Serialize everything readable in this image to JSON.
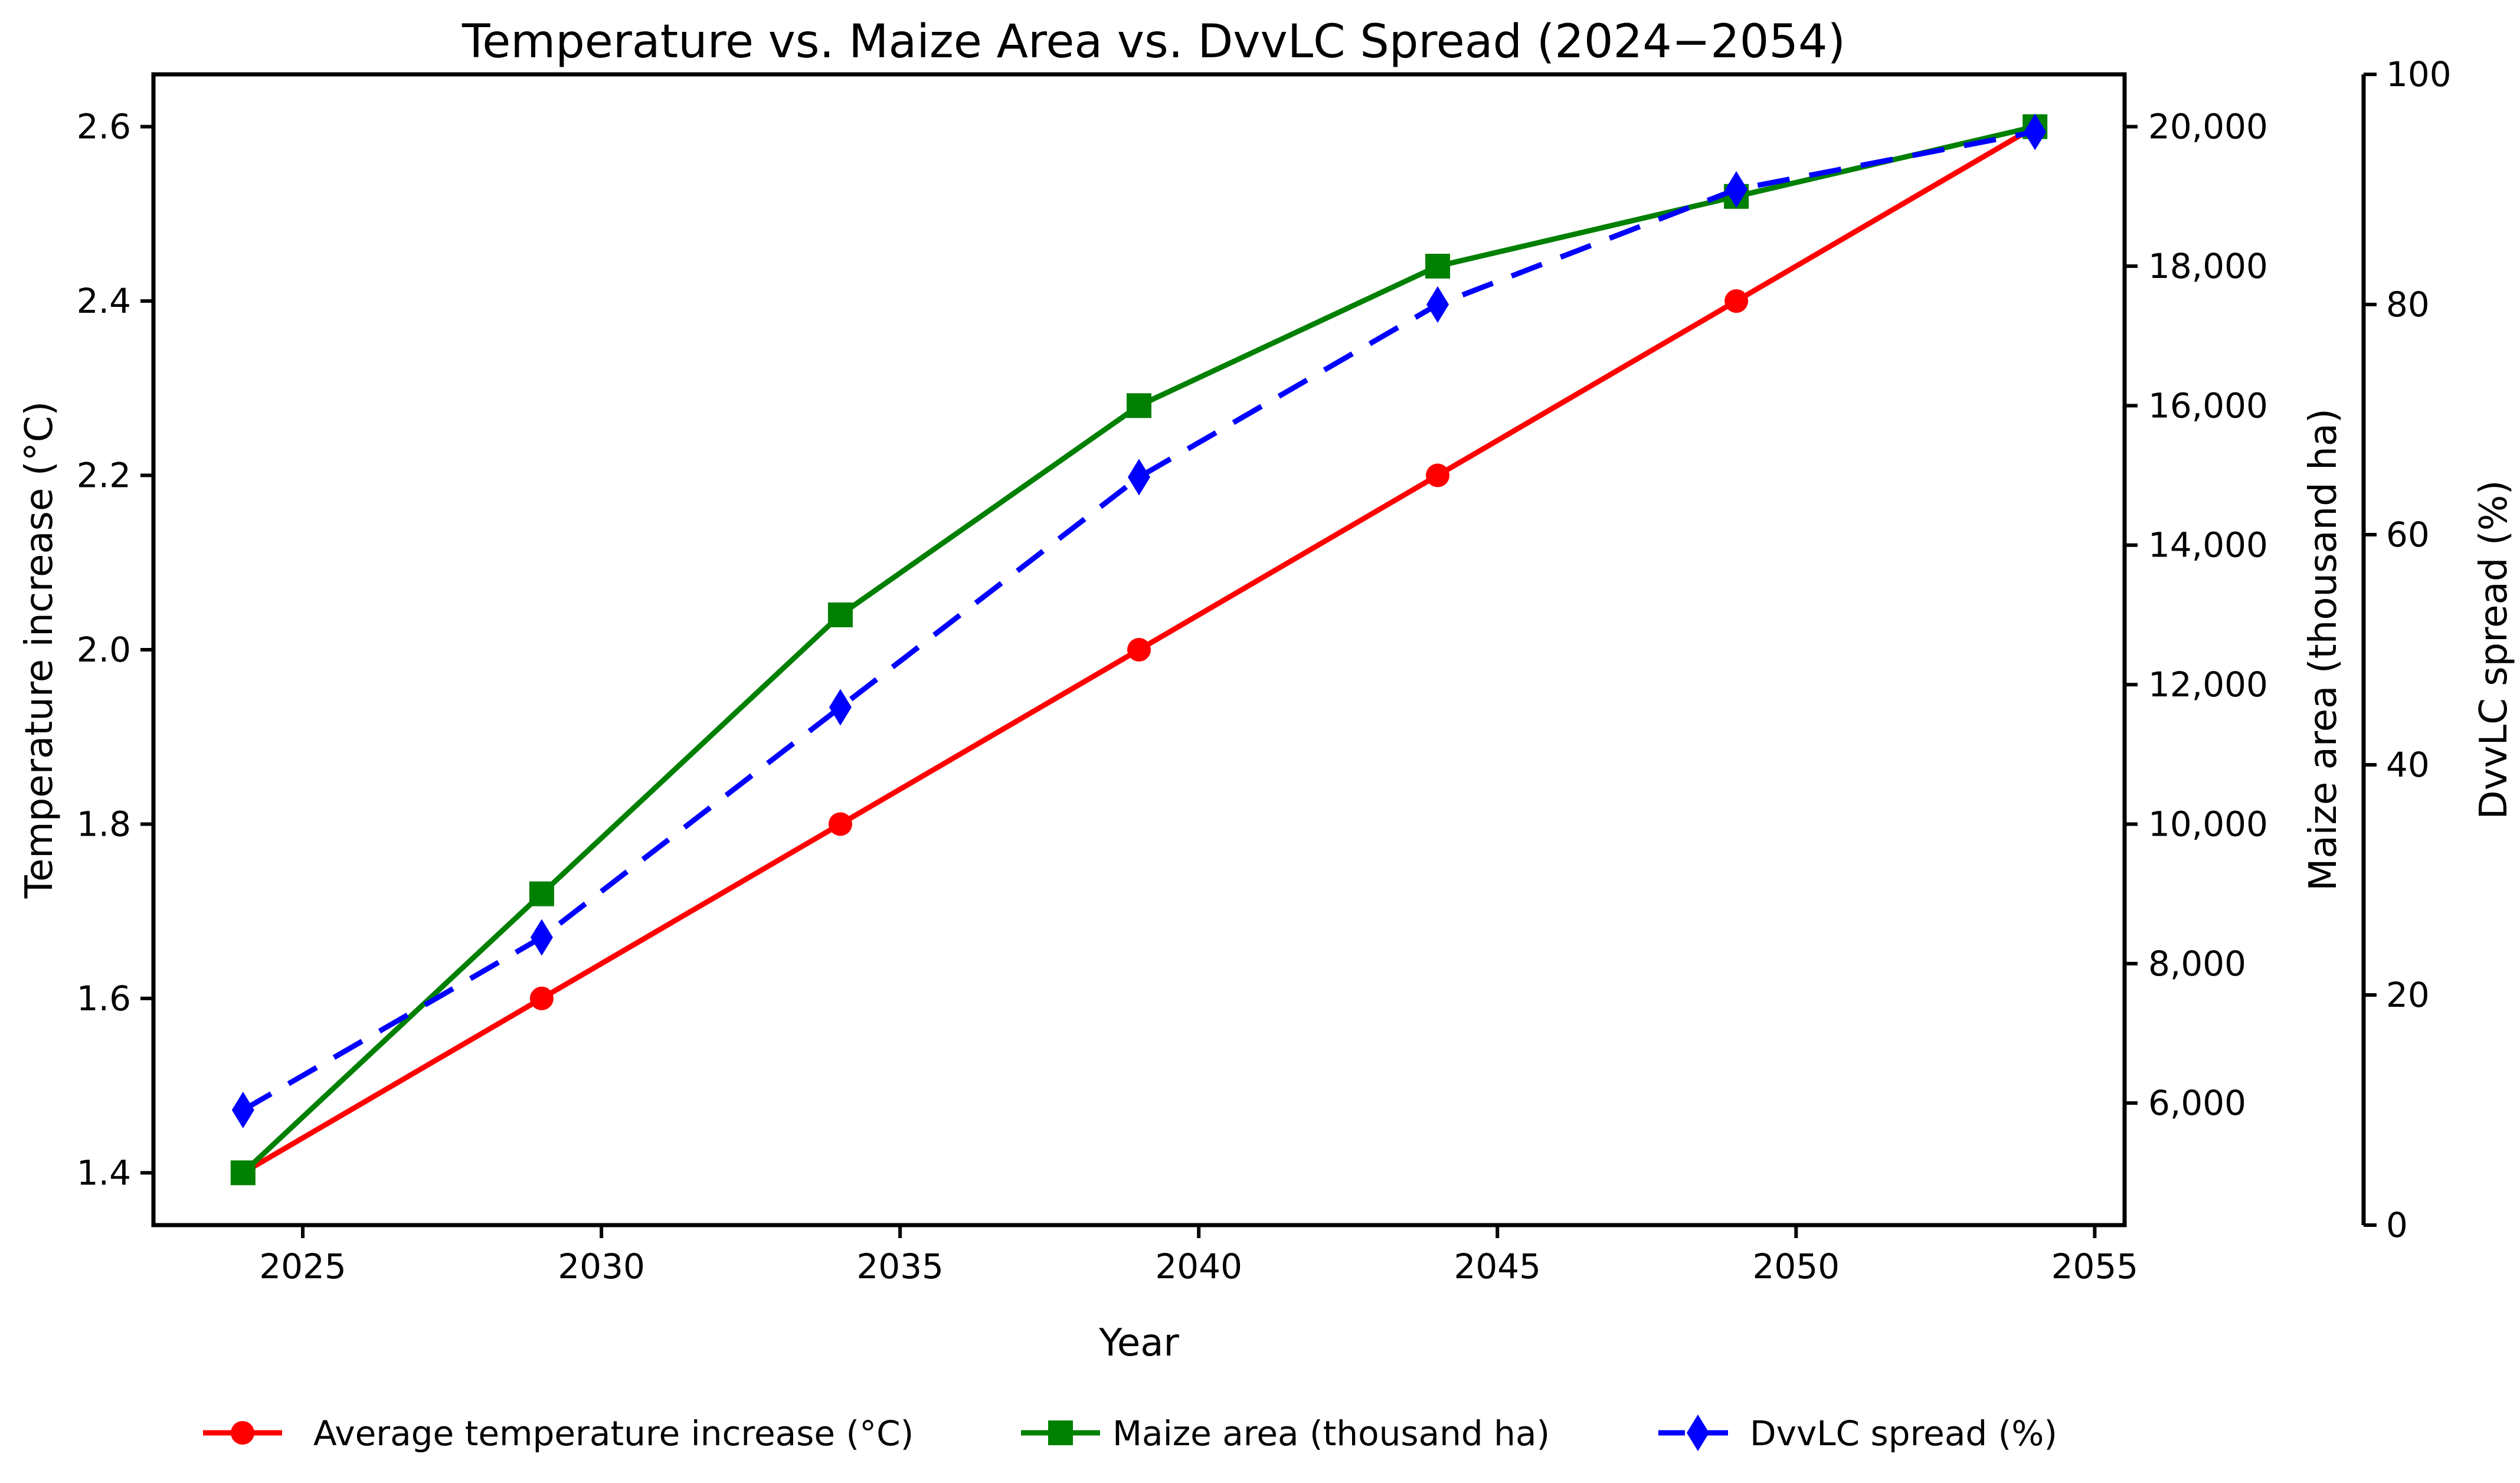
{
  "figure": {
    "background": "#ffffff"
  },
  "chart_data": {
    "type": "line",
    "title": "Temperature vs. Maize Area vs. DvvLC Spread (2024−2054)",
    "xlabel": "Year",
    "x": [
      2024,
      2029,
      2034,
      2039,
      2044,
      2049,
      2054
    ],
    "x_ticks": [
      2025,
      2030,
      2035,
      2040,
      2045,
      2050,
      2055
    ],
    "xlim": [
      2022.5,
      2055.5
    ],
    "grid": false,
    "legend_position": "bottom-center",
    "legend_frame": false,
    "spine_color": "#000000",
    "axes": [
      {
        "id": "left",
        "label": "Temperature increase (°C)",
        "color": "#ff0000",
        "ticks": [
          1.4,
          1.6,
          1.8,
          2.0,
          2.2,
          2.4,
          2.6
        ],
        "lim": [
          1.34,
          2.66
        ],
        "tick_format": "one-decimal"
      },
      {
        "id": "right",
        "label": "Maize area (thousand ha)",
        "color": "#008000",
        "ticks": [
          6000,
          8000,
          10000,
          12000,
          14000,
          16000,
          18000,
          20000
        ],
        "lim": [
          4250,
          20750
        ],
        "tick_format": "thousands"
      },
      {
        "id": "far-right",
        "label": "DvvLC spread (%)",
        "color": "#0000ff",
        "ticks": [
          0,
          20,
          40,
          60,
          80,
          100
        ],
        "lim": [
          0,
          100
        ],
        "tick_format": "integer"
      }
    ],
    "series": [
      {
        "name": "Average temperature increase (°C)",
        "axis": "left",
        "color": "#ff0000",
        "linestyle": "solid",
        "marker": "circle",
        "values": [
          1.4,
          1.6,
          1.8,
          2.0,
          2.2,
          2.4,
          2.6
        ]
      },
      {
        "name": "Maize area (thousand ha)",
        "axis": "right",
        "color": "#008000",
        "linestyle": "solid",
        "marker": "square",
        "values": [
          5000,
          9000,
          13000,
          16000,
          18000,
          19000,
          20000
        ]
      },
      {
        "name": "DvvLC spread (%)",
        "axis": "far-right",
        "color": "#0000ff",
        "linestyle": "dashed",
        "marker": "thin-diamond",
        "values": [
          10,
          25,
          45,
          65,
          80,
          90,
          95
        ]
      }
    ]
  }
}
